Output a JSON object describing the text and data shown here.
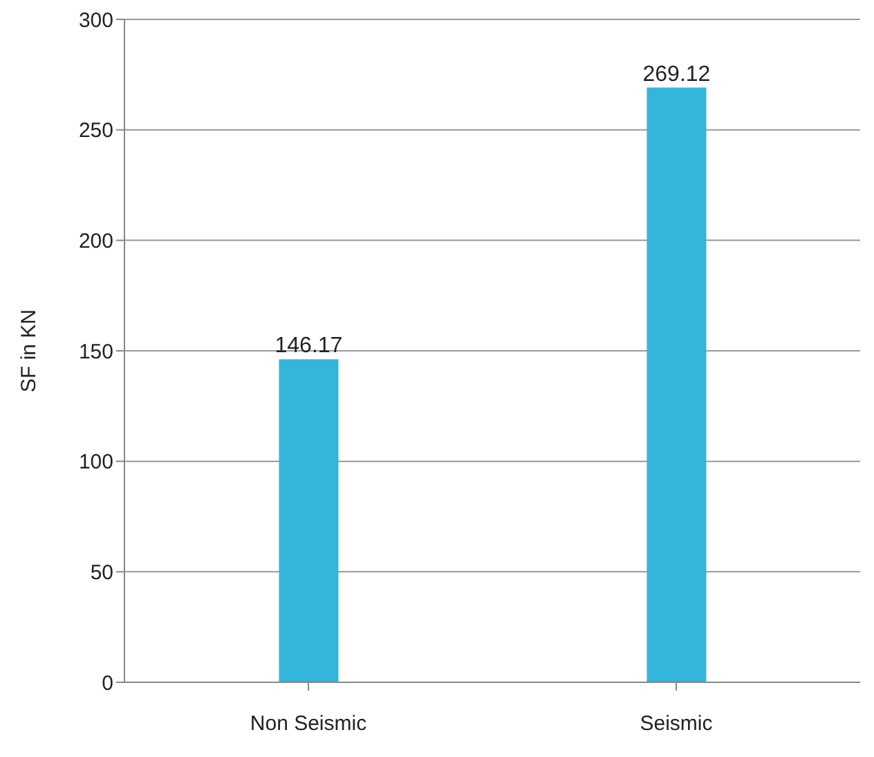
{
  "chart_data": {
    "type": "bar",
    "ylabel": "SF in KN",
    "categories": [
      "Non Seismic",
      "Seismic"
    ],
    "values": [
      146.17,
      269.12
    ],
    "color": "#33b5dc",
    "ylim": [
      0,
      300
    ],
    "yticks": [
      0,
      50,
      100,
      150,
      200,
      250,
      300
    ],
    "grid": "y",
    "data_labels": true
  }
}
